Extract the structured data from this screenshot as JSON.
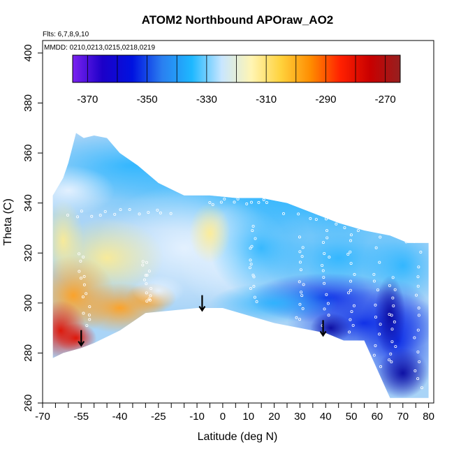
{
  "chart_data": {
    "type": "heatmap",
    "title": "ATOM2 Northbound APOraw_AO2",
    "annotations": {
      "flights": "Flts: 6,7,8,9,10",
      "dates": "MMDD: 0210,0213,0215,0218,0219"
    },
    "xlabel": "Latitude (deg N)",
    "ylabel": "Theta (C)",
    "xlim": [
      -70,
      82
    ],
    "ylim": [
      260,
      405
    ],
    "x_tick_labels": [
      "-70",
      "-55",
      "-40",
      "-25",
      "-10",
      "0",
      "10",
      "20",
      "30",
      "40",
      "50",
      "60",
      "70",
      "80"
    ],
    "x_tick_values": [
      -70,
      -55,
      -40,
      -25,
      -10,
      0,
      10,
      20,
      30,
      40,
      50,
      60,
      70,
      80
    ],
    "x_minor_ticks": [
      -65,
      -60,
      -50,
      -45,
      -35,
      -30,
      -20,
      -15,
      -5,
      5,
      15,
      25,
      35,
      45,
      55,
      65,
      75
    ],
    "y_tick_labels": [
      "260",
      "280",
      "300",
      "320",
      "340",
      "360",
      "380",
      "400"
    ],
    "y_tick_values": [
      260,
      280,
      300,
      320,
      340,
      360,
      380,
      400
    ],
    "colorbar": {
      "min": -375,
      "max": -265,
      "tick_labels": [
        "-370",
        "-350",
        "-330",
        "-310",
        "-290",
        "-270"
      ],
      "tick_values": [
        -370,
        -350,
        -330,
        -310,
        -290,
        -270
      ],
      "bin_edges": [
        -370,
        -360,
        -350,
        -340,
        -330,
        -320,
        -310,
        -300,
        -290,
        -280,
        -270
      ],
      "colors": [
        "#7b22f0",
        "#1c00c8",
        "#0012e0",
        "#2a7ff0",
        "#1eb8ff",
        "#c8e6ff",
        "#fff5b4",
        "#ffd23c",
        "#ff8c00",
        "#ff2000",
        "#c80000",
        "#962020"
      ]
    },
    "domain_top": [
      [
        -66,
        343
      ],
      [
        -62,
        350
      ],
      [
        -60,
        356
      ],
      [
        -57,
        368
      ],
      [
        -54,
        366
      ],
      [
        -50,
        367
      ],
      [
        -45,
        366
      ],
      [
        -40,
        360
      ],
      [
        -33,
        355
      ],
      [
        -25,
        348
      ],
      [
        -15,
        343
      ],
      [
        -5,
        343
      ],
      [
        5,
        342
      ],
      [
        15,
        342
      ],
      [
        25,
        340
      ],
      [
        35,
        336
      ],
      [
        45,
        332
      ],
      [
        55,
        329
      ],
      [
        65,
        327
      ],
      [
        72,
        324
      ],
      [
        80,
        324
      ]
    ],
    "domain_bottom": [
      [
        -66,
        278
      ],
      [
        -62,
        280
      ],
      [
        -55,
        282
      ],
      [
        -50,
        284
      ],
      [
        -40,
        289
      ],
      [
        -30,
        296
      ],
      [
        -20,
        297
      ],
      [
        -10,
        298
      ],
      [
        0,
        298
      ],
      [
        10,
        295
      ],
      [
        20,
        292
      ],
      [
        30,
        290
      ],
      [
        40,
        288
      ],
      [
        47,
        285
      ],
      [
        55,
        285
      ],
      [
        65,
        262
      ],
      [
        72,
        262
      ],
      [
        80,
        262
      ]
    ],
    "arrows": [
      [
        -55,
        283
      ],
      [
        -8,
        297
      ],
      [
        39,
        287
      ]
    ]
  }
}
